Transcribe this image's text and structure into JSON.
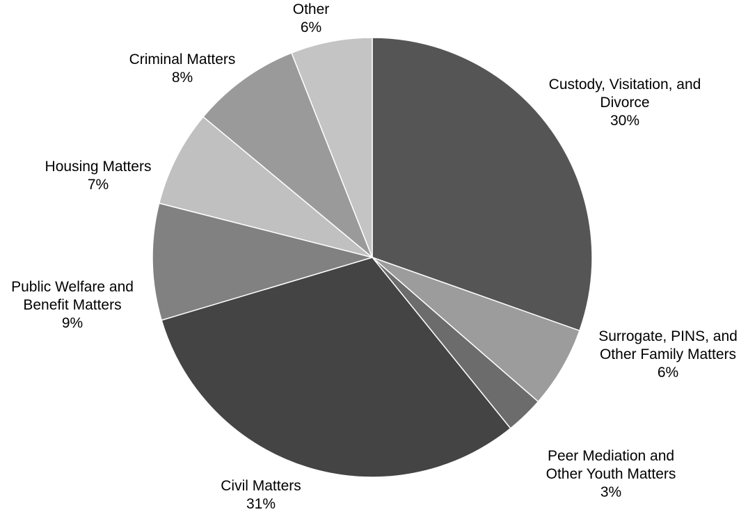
{
  "chart_data": {
    "type": "pie",
    "title": "",
    "start_angle_deg": 0,
    "direction": "clockwise",
    "legend": "none",
    "slices": [
      {
        "label_lines": [
          "Custody, Visitation, and",
          "Divorce"
        ],
        "pct_label": "30%",
        "value": 30.5,
        "color": "#555555"
      },
      {
        "label_lines": [
          "Surrogate, PINS, and",
          "Other Family Matters"
        ],
        "pct_label": "6%",
        "value": 6.0,
        "color": "#9c9c9c"
      },
      {
        "label_lines": [
          "Peer Mediation and",
          "Other Youth Matters"
        ],
        "pct_label": "3%",
        "value": 2.8,
        "color": "#6c6c6c"
      },
      {
        "label_lines": [
          "Civil Matters"
        ],
        "pct_label": "31%",
        "value": 31.3,
        "color": "#444444"
      },
      {
        "label_lines": [
          "Public Welfare and",
          "Benefit Matters"
        ],
        "pct_label": "9%",
        "value": 8.6,
        "color": "#818181"
      },
      {
        "label_lines": [
          "Housing Matters"
        ],
        "pct_label": "7%",
        "value": 7.1,
        "color": "#c0c0c0"
      },
      {
        "label_lines": [
          "Criminal Matters"
        ],
        "pct_label": "8%",
        "value": 8.0,
        "color": "#9a9a9a"
      },
      {
        "label_lines": [
          "Other"
        ],
        "pct_label": "6%",
        "value": 6.0,
        "color": "#c4c4c4"
      }
    ]
  }
}
